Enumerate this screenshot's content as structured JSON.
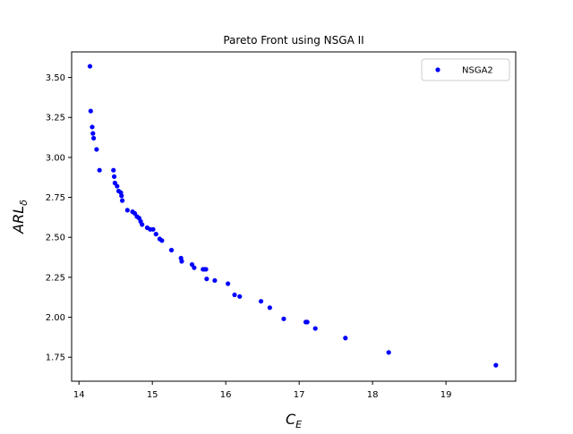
{
  "chart_data": {
    "type": "scatter",
    "title": "Pareto Front using NSGA II",
    "xlabel": "C",
    "xlabel_sub": "E",
    "ylabel": "ARL",
    "ylabel_sub": "δ",
    "xlim": [
      13.9,
      19.95
    ],
    "ylim": [
      1.6,
      3.66
    ],
    "x_ticks": [
      14,
      15,
      16,
      17,
      18,
      19
    ],
    "x_tick_labels": [
      "14",
      "15",
      "16",
      "17",
      "18",
      "19"
    ],
    "y_ticks": [
      1.75,
      2.0,
      2.25,
      2.5,
      2.75,
      3.0,
      3.25,
      3.5
    ],
    "y_tick_labels": [
      "1.75",
      "2.00",
      "2.25",
      "2.50",
      "2.75",
      "3.00",
      "3.25",
      "3.50"
    ],
    "grid": false,
    "legend_position": "top-right",
    "series": [
      {
        "name": "NSGA2",
        "color": "#0000ff",
        "marker": "circle",
        "points": [
          [
            14.15,
            3.57
          ],
          [
            14.16,
            3.29
          ],
          [
            14.18,
            3.19
          ],
          [
            14.19,
            3.15
          ],
          [
            14.2,
            3.12
          ],
          [
            14.24,
            3.05
          ],
          [
            14.28,
            2.92
          ],
          [
            14.47,
            2.92
          ],
          [
            14.48,
            2.88
          ],
          [
            14.49,
            2.84
          ],
          [
            14.52,
            2.82
          ],
          [
            14.54,
            2.79
          ],
          [
            14.57,
            2.78
          ],
          [
            14.58,
            2.76
          ],
          [
            14.59,
            2.73
          ],
          [
            14.66,
            2.67
          ],
          [
            14.73,
            2.66
          ],
          [
            14.76,
            2.65
          ],
          [
            14.79,
            2.63
          ],
          [
            14.82,
            2.62
          ],
          [
            14.84,
            2.6
          ],
          [
            14.86,
            2.58
          ],
          [
            14.93,
            2.56
          ],
          [
            14.97,
            2.55
          ],
          [
            15.01,
            2.55
          ],
          [
            15.05,
            2.52
          ],
          [
            15.1,
            2.49
          ],
          [
            15.13,
            2.48
          ],
          [
            15.26,
            2.42
          ],
          [
            15.39,
            2.37
          ],
          [
            15.4,
            2.35
          ],
          [
            15.54,
            2.33
          ],
          [
            15.57,
            2.31
          ],
          [
            15.69,
            2.3
          ],
          [
            15.71,
            2.3
          ],
          [
            15.73,
            2.3
          ],
          [
            15.74,
            2.24
          ],
          [
            15.85,
            2.23
          ],
          [
            16.03,
            2.21
          ],
          [
            16.12,
            2.14
          ],
          [
            16.19,
            2.13
          ],
          [
            16.48,
            2.1
          ],
          [
            16.6,
            2.06
          ],
          [
            16.79,
            1.99
          ],
          [
            17.09,
            1.97
          ],
          [
            17.11,
            1.97
          ],
          [
            17.22,
            1.93
          ],
          [
            17.63,
            1.87
          ],
          [
            18.22,
            1.78
          ],
          [
            19.68,
            1.7
          ]
        ]
      }
    ]
  }
}
